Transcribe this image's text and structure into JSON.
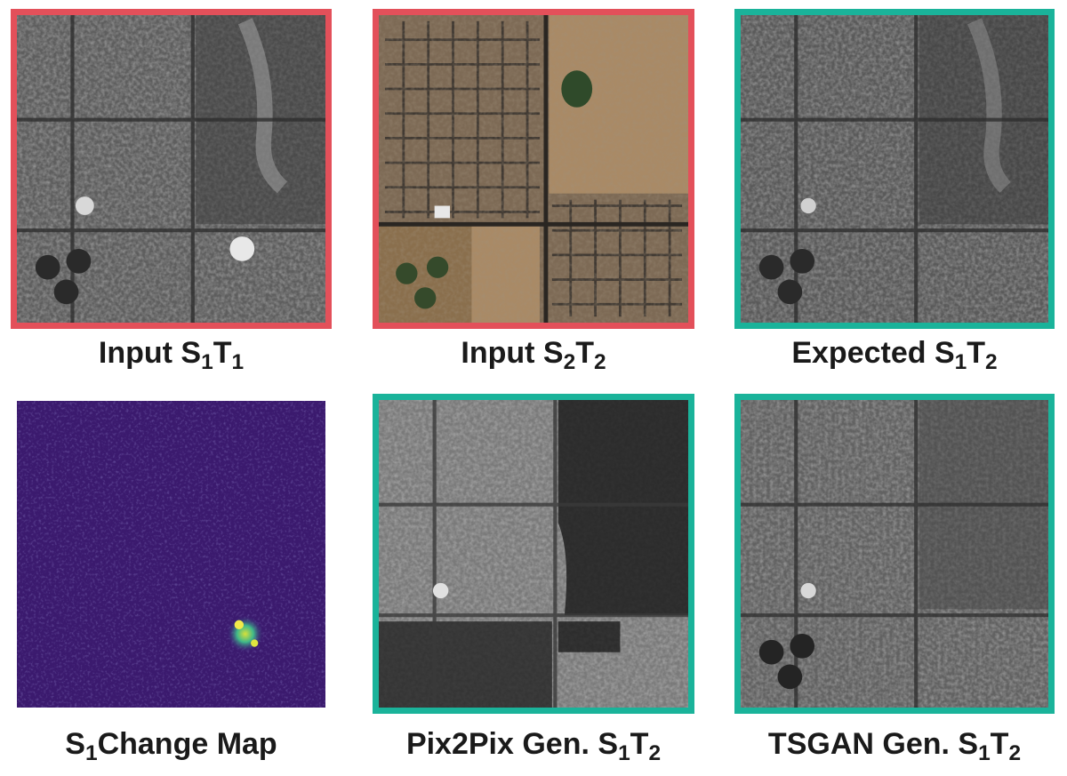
{
  "panels": [
    {
      "id": "input-s1t1",
      "frame_color": "#e3505a",
      "style": "sar",
      "caption": {
        "prefix": "Input S",
        "sub1": "1",
        "mid": "T",
        "sub2": "1",
        "suffix": ""
      }
    },
    {
      "id": "input-s2t2",
      "frame_color": "#e3505a",
      "style": "optical",
      "caption": {
        "prefix": "Input S",
        "sub1": "2",
        "mid": "T",
        "sub2": "2",
        "suffix": ""
      }
    },
    {
      "id": "expected-s1t2",
      "frame_color": "#1ab39a",
      "style": "sar",
      "caption": {
        "prefix": "Expected S",
        "sub1": "1",
        "mid": "T",
        "sub2": "2",
        "suffix": ""
      }
    },
    {
      "id": "s1-change-map",
      "frame_color": "",
      "style": "changemap",
      "caption": {
        "prefix": "S",
        "sub1": "1",
        "mid": "Change Map",
        "sub2": "",
        "suffix": ""
      }
    },
    {
      "id": "pix2pix-gen",
      "frame_color": "#1ab39a",
      "style": "sar-dark",
      "caption": {
        "prefix": "Pix2Pix Gen. S",
        "sub1": "1",
        "mid": "T",
        "sub2": "2",
        "suffix": ""
      }
    },
    {
      "id": "tsgan-gen",
      "frame_color": "#1ab39a",
      "style": "sar",
      "caption": {
        "prefix": "TSGAN Gen. S",
        "sub1": "1",
        "mid": "T",
        "sub2": "2",
        "suffix": ""
      }
    }
  ]
}
